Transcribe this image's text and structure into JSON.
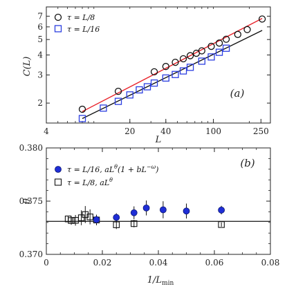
{
  "chart_data": [
    {
      "panel_label": "(a)",
      "type": "scatter",
      "xscale": "log",
      "yscale": "log",
      "xlabel": "L",
      "ylabel": "C(L)",
      "xlim": [
        4,
        300
      ],
      "ylim": [
        1.5,
        8
      ],
      "xticks": [
        4,
        20,
        40,
        100,
        250
      ],
      "xtick_labels": [
        "4",
        "20",
        "40",
        "100",
        "250"
      ],
      "yticks": [
        2,
        3,
        4,
        5,
        6,
        7
      ],
      "ytick_labels": [
        "2",
        "3",
        "4",
        "5",
        "6",
        "7"
      ],
      "legend_position": "top-left",
      "series": [
        {
          "name": "τ = L/8",
          "marker": "circle",
          "color": "#d62728",
          "x": [
            8,
            16,
            32,
            40,
            48,
            56,
            64,
            72,
            80,
            96,
            112,
            128,
            160,
            192,
            256
          ],
          "y": [
            1.83,
            2.37,
            3.14,
            3.39,
            3.6,
            3.79,
            3.96,
            4.1,
            4.25,
            4.53,
            4.75,
            5.02,
            5.38,
            5.77,
            6.72
          ],
          "fit_line": {
            "color": "#e8222a",
            "x": [
              8,
              256
            ],
            "y": [
              1.77,
              6.78
            ]
          }
        },
        {
          "name": "τ = L/16",
          "marker": "square",
          "color": "#2b3ee0",
          "x": [
            8,
            12,
            16,
            20,
            24,
            28,
            32,
            40,
            48,
            56,
            64,
            80,
            96,
            112,
            128
          ],
          "y": [
            1.6,
            1.86,
            2.05,
            2.25,
            2.42,
            2.53,
            2.67,
            2.87,
            3.02,
            3.18,
            3.35,
            3.66,
            3.89,
            4.16,
            4.41
          ],
          "fit_line": {
            "color": "#111111",
            "x": [
              8,
              256
            ],
            "y": [
              1.6,
              5.7
            ]
          }
        }
      ]
    },
    {
      "panel_label": "(b)",
      "type": "scatter",
      "xlabel": "1/L_min",
      "ylabel": "θ",
      "xlim": [
        0,
        0.08
      ],
      "ylim": [
        0.37,
        0.38
      ],
      "xticks": [
        0,
        0.02,
        0.04,
        0.06,
        0.08
      ],
      "xtick_labels": [
        "0",
        "0.02",
        "0.04",
        "0.06",
        "0.08"
      ],
      "yticks": [
        0.37,
        0.375,
        0.38
      ],
      "ytick_labels": [
        "0.370",
        "0.375",
        "0.380"
      ],
      "reference_line": 0.3731,
      "legend_position": "top-left",
      "series": [
        {
          "name": "τ = L/16, aL^θ(1 + bL^−ω)",
          "marker": "filled-circle",
          "color": "#1f2ed6",
          "x": [
            0.0179,
            0.025,
            0.0313,
            0.0357,
            0.0417,
            0.05,
            0.0625
          ],
          "y": [
            0.37326,
            0.37347,
            0.37391,
            0.37436,
            0.37419,
            0.37407,
            0.37416
          ],
          "err": [
            0.00035,
            0.0004,
            0.0006,
            0.0007,
            0.0008,
            0.0007,
            0.0004
          ]
        },
        {
          "name": "τ = L/8, aL^θ",
          "marker": "open-square",
          "color": "#111111",
          "x": [
            0.0078,
            0.0089,
            0.0104,
            0.0125,
            0.0139,
            0.0156,
            0.0179,
            0.025,
            0.0313,
            0.0625
          ],
          "y": [
            0.37333,
            0.37318,
            0.3732,
            0.37344,
            0.37374,
            0.37352,
            0.37323,
            0.37278,
            0.37289,
            0.3728
          ],
          "err": [
            0.00025,
            0.0004,
            0.0005,
            0.0007,
            0.0008,
            0.0007,
            0.0005,
            0.0004,
            0.00035,
            0.0002
          ]
        }
      ]
    }
  ],
  "legend_a": [
    {
      "prefix": "τ = ",
      "var": "L",
      "rest": "/8"
    },
    {
      "prefix": "τ = ",
      "var": "L",
      "rest": "/16"
    }
  ],
  "legend_b": [
    "τ = L/16, aL",
    "τ = L/8, aL"
  ]
}
